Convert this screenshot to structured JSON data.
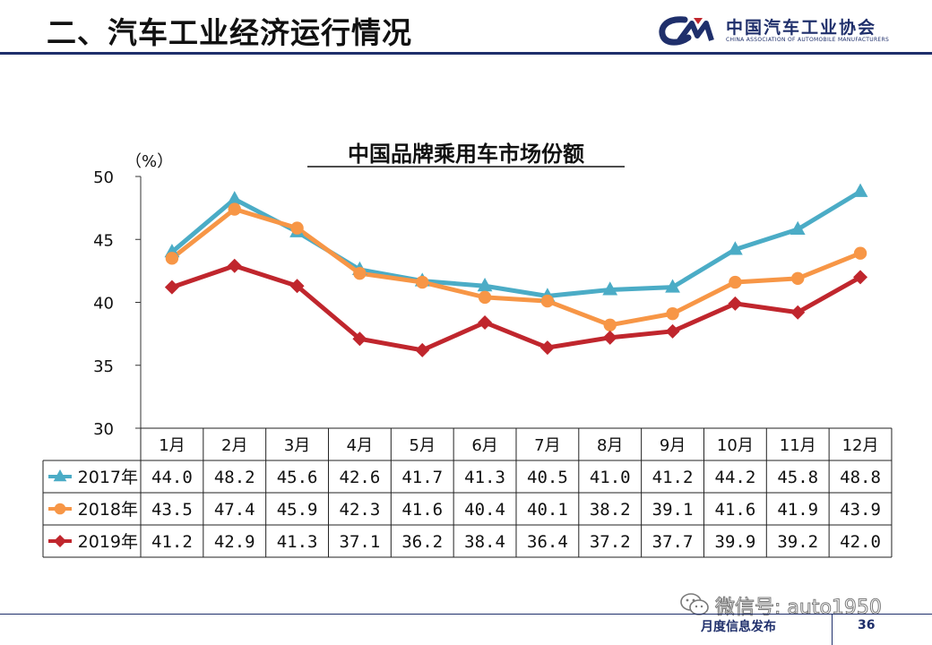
{
  "header": {
    "title": "二、汽车工业经济运行情况",
    "logo_org_name": "中国汽车工业协会",
    "logo_org_english": "CHINA ASSOCIATION OF AUTOMOBILE MANUFACTURERS",
    "rule_color": "#1f2f6b"
  },
  "chart_data": {
    "type": "line",
    "title": "中国品牌乘用车市场份额",
    "ylabel": "（%）",
    "xlabel": "",
    "ylim": [
      30,
      50
    ],
    "yticks": [
      30,
      35,
      40,
      45,
      50
    ],
    "grid": false,
    "legend": "data-table",
    "categories": [
      "1月",
      "2月",
      "3月",
      "4月",
      "5月",
      "6月",
      "7月",
      "8月",
      "9月",
      "10月",
      "11月",
      "12月"
    ],
    "series": [
      {
        "name": "2017年",
        "marker": "triangle",
        "color": "#4bacc6",
        "values": [
          44.0,
          48.2,
          45.6,
          42.6,
          41.7,
          41.3,
          40.5,
          41.0,
          41.2,
          44.2,
          45.8,
          48.8
        ],
        "labels": [
          "44.0",
          "48.2",
          "45.6",
          "42.6",
          "41.7",
          "41.3",
          "40.5",
          "41.0",
          "41.2",
          "44.2",
          "45.8",
          "48.8"
        ]
      },
      {
        "name": "2018年",
        "marker": "circle",
        "color": "#f79646",
        "values": [
          43.5,
          47.4,
          45.9,
          42.3,
          41.6,
          40.4,
          40.1,
          38.2,
          39.1,
          41.6,
          41.9,
          43.9
        ],
        "labels": [
          "43.5",
          "47.4",
          "45.9",
          "42.3",
          "41.6",
          "40.4",
          "40.1",
          "38.2",
          "39.1",
          "41.6",
          "41.9",
          "43.9"
        ]
      },
      {
        "name": "2019年",
        "marker": "diamond",
        "color": "#c0262d",
        "values": [
          41.2,
          42.9,
          41.3,
          37.1,
          36.2,
          38.4,
          36.4,
          37.2,
          37.7,
          39.9,
          39.2,
          42.0
        ],
        "labels": [
          "41.2",
          "42.9",
          "41.3",
          "37.1",
          "36.2",
          "38.4",
          "36.4",
          "37.2",
          "37.7",
          "39.9",
          "39.2",
          "42.0"
        ]
      }
    ]
  },
  "footer": {
    "label": "月度信息发布",
    "page_number": "36",
    "watermark": "微信号: auto1950",
    "watermark_icon": "wechat-icon"
  }
}
